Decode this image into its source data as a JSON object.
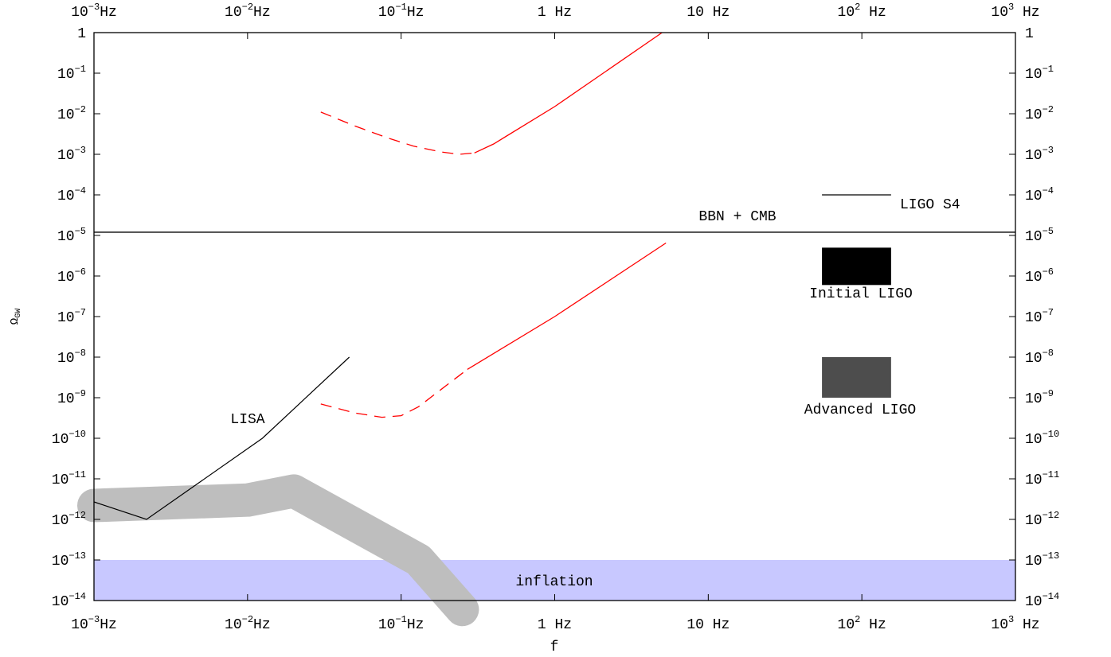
{
  "chart_data": {
    "type": "line",
    "xscale": "log",
    "yscale": "log",
    "xlim": [
      0.001,
      1000
    ],
    "ylim": [
      1e-14,
      1
    ],
    "xlabel": "f",
    "ylabel": "Ω",
    "ylabel_subscript": "GW",
    "grid": false,
    "x_ticks": [
      {
        "base": "10",
        "exp": "−3",
        "unit": "Hz",
        "value": 0.001
      },
      {
        "base": "10",
        "exp": "−2",
        "unit": "Hz",
        "value": 0.01
      },
      {
        "base": "10",
        "exp": "−1",
        "unit": "Hz",
        "value": 0.1
      },
      {
        "base": "1",
        "exp": "",
        "unit": " Hz",
        "value": 1
      },
      {
        "base": "10",
        "exp": "",
        "unit": " Hz",
        "value": 10
      },
      {
        "base": "10",
        "exp": "2",
        "unit": " Hz",
        "value": 100
      },
      {
        "base": "10",
        "exp": "3",
        "unit": " Hz",
        "value": 1000
      }
    ],
    "y_ticks": [
      {
        "base": "1",
        "exp": "",
        "value": 0
      },
      {
        "base": "10",
        "exp": "−1",
        "value": -1
      },
      {
        "base": "10",
        "exp": "−2",
        "value": -2
      },
      {
        "base": "10",
        "exp": "−3",
        "value": -3
      },
      {
        "base": "10",
        "exp": "−4",
        "value": -4
      },
      {
        "base": "10",
        "exp": "−5",
        "value": -5
      },
      {
        "base": "10",
        "exp": "−6",
        "value": -6
      },
      {
        "base": "10",
        "exp": "−7",
        "value": -7
      },
      {
        "base": "10",
        "exp": "−8",
        "value": -8
      },
      {
        "base": "10",
        "exp": "−9",
        "value": -9
      },
      {
        "base": "10",
        "exp": "−10",
        "value": -10
      },
      {
        "base": "10",
        "exp": "−11",
        "value": -11
      },
      {
        "base": "10",
        "exp": "−12",
        "value": -12
      },
      {
        "base": "10",
        "exp": "−13",
        "value": -13
      },
      {
        "base": "10",
        "exp": "−14",
        "value": -14
      }
    ],
    "annotations": {
      "bbn": "BBN + CMB",
      "lisa": "LISA",
      "initial_ligo": "Initial LIGO",
      "advanced_ligo": "Advanced LIGO",
      "inflation": "inflation",
      "ligo_s4": "LIGO S4"
    },
    "bbn_cmb_level": 1.2e-05,
    "lisa_curve": [
      [
        0.001,
        2.7e-12
      ],
      [
        0.0022,
        1e-12
      ],
      [
        0.0125,
        1e-10
      ],
      [
        0.046,
        1e-08
      ]
    ],
    "upper_red_curve": {
      "dashed": [
        [
          0.03,
          0.011
        ],
        [
          0.05,
          0.005
        ],
        [
          0.08,
          0.0026
        ],
        [
          0.12,
          0.0016
        ],
        [
          0.18,
          0.00115
        ],
        [
          0.24,
          0.001
        ],
        [
          0.3,
          0.00108
        ]
      ],
      "solid": [
        [
          0.3,
          0.00108
        ],
        [
          0.4,
          0.0018
        ],
        [
          1.0,
          0.015
        ],
        [
          5.0,
          1.0
        ]
      ]
    },
    "lower_red_curve": {
      "dashed": [
        [
          0.03,
          7e-10
        ],
        [
          0.05,
          4.2e-10
        ],
        [
          0.075,
          3.3e-10
        ],
        [
          0.1,
          3.6e-10
        ],
        [
          0.13,
          6e-10
        ],
        [
          0.27,
          5e-09
        ]
      ],
      "solid": [
        [
          0.27,
          5e-09
        ],
        [
          1.0,
          1e-07
        ],
        [
          5.3,
          6.5e-06
        ]
      ]
    },
    "gray_band": [
      [
        0.001,
        2.2e-12
      ],
      [
        0.01,
        3e-12
      ],
      [
        0.02,
        5e-12
      ],
      [
        0.13,
        1e-13
      ],
      [
        0.25,
        6e-15
      ]
    ],
    "inflation_band": [
      1e-14,
      1e-13
    ],
    "initial_ligo_box": {
      "f": [
        55,
        155
      ],
      "omega": [
        6e-07,
        5e-06
      ]
    },
    "advanced_ligo_box": {
      "f": [
        55,
        155
      ],
      "omega": [
        1e-09,
        1e-08
      ]
    },
    "ligo_s4_segment": {
      "f": [
        55,
        155
      ],
      "omega": 0.0001
    },
    "colors": {
      "red_curve": "#ff0000",
      "gray_band": "#bebebe",
      "inflation": "#c8c8ff",
      "initial_ligo": "#000000",
      "advanced_ligo": "#4d4d4d"
    }
  }
}
